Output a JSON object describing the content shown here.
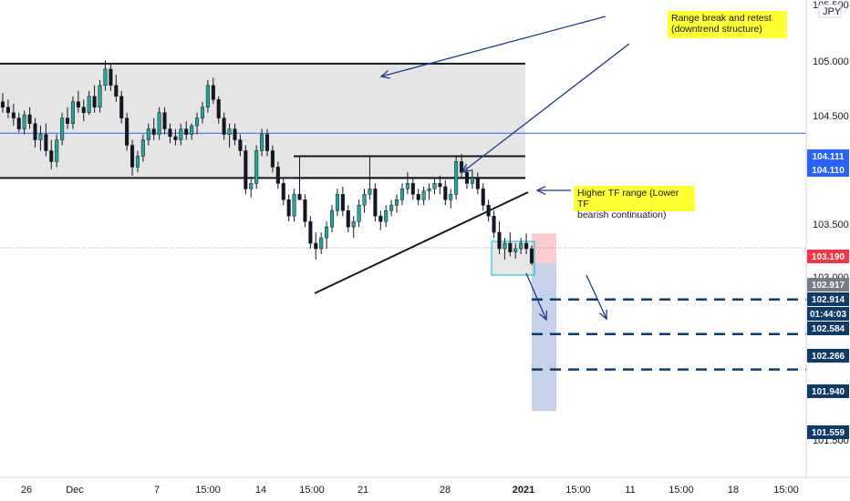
{
  "chart_data": {
    "type": "candlestick",
    "symbol_badge": "JPY",
    "y_axis": {
      "ticks": [
        "105.000",
        "104.500",
        "103.500",
        "103.000"
      ],
      "partial_ticks": [
        "105.500",
        "101.500"
      ],
      "range": [
        101.0,
        105.6
      ]
    },
    "x_axis": {
      "ticks": [
        "26",
        "Dec",
        "7",
        "15:00",
        "14",
        "15:00",
        "21",
        "28",
        "2021",
        "15:00",
        "11",
        "15:00",
        "18",
        "15:00"
      ]
    },
    "price_tags": [
      {
        "value": "104.111",
        "color": "#2962ff"
      },
      {
        "value": "104.110",
        "color": "#2962ff"
      },
      {
        "value": "103.190",
        "color": "#f23645"
      },
      {
        "value": "102.917",
        "color": "#787b86"
      },
      {
        "value": "102.914",
        "color": "#0c3a6b"
      },
      {
        "value": "01:44:03",
        "color": "#0c3a6b"
      },
      {
        "value": "102.584",
        "color": "#0c3a6b"
      },
      {
        "value": "102.266",
        "color": "#0c3a6b"
      },
      {
        "value": "101.940",
        "color": "#0c3a6b"
      },
      {
        "value": "101.559",
        "color": "#0c3a6b"
      }
    ],
    "horizontal_level": 104.111,
    "range_box": {
      "top": 104.75,
      "bottom": 103.7
    },
    "higher_tf_range": {
      "top": 103.9,
      "bottom": 103.7
    },
    "target_levels": [
      102.584,
      102.266,
      101.94
    ],
    "short_position": {
      "entry": 102.917,
      "stop": 103.19,
      "target": 101.559
    },
    "annotations": [
      "Range break and retest\n(downtrend structure)",
      "Higher TF range (Lower TF\nbearish continuation)"
    ],
    "colors": {
      "up": "#26a69a",
      "down": "#131722",
      "wick": "#131722",
      "level_line": "#2962ff",
      "target_line": "#0c3a6b"
    },
    "ohlc": [
      [
        104.4,
        104.48,
        104.3,
        104.35
      ],
      [
        104.35,
        104.42,
        104.25,
        104.3
      ],
      [
        104.3,
        104.38,
        104.18,
        104.25
      ],
      [
        104.25,
        104.3,
        104.12,
        104.15
      ],
      [
        104.15,
        104.32,
        104.1,
        104.28
      ],
      [
        104.28,
        104.35,
        104.15,
        104.2
      ],
      [
        104.2,
        104.25,
        103.98,
        104.05
      ],
      [
        104.05,
        104.18,
        103.95,
        104.1
      ],
      [
        104.1,
        104.2,
        103.9,
        103.95
      ],
      [
        103.95,
        104.05,
        103.78,
        103.85
      ],
      [
        103.85,
        104.1,
        103.8,
        104.05
      ],
      [
        104.05,
        104.3,
        104.0,
        104.25
      ],
      [
        104.25,
        104.35,
        104.15,
        104.2
      ],
      [
        104.2,
        104.45,
        104.15,
        104.4
      ],
      [
        104.4,
        104.5,
        104.3,
        104.35
      ],
      [
        104.35,
        104.42,
        104.22,
        104.3
      ],
      [
        104.3,
        104.5,
        104.28,
        104.45
      ],
      [
        104.45,
        104.55,
        104.3,
        104.35
      ],
      [
        104.35,
        104.6,
        104.3,
        104.55
      ],
      [
        104.55,
        104.78,
        104.5,
        104.7
      ],
      [
        104.7,
        104.75,
        104.5,
        104.55
      ],
      [
        104.55,
        104.65,
        104.4,
        104.45
      ],
      [
        104.45,
        104.5,
        104.2,
        104.25
      ],
      [
        104.25,
        104.3,
        103.95,
        104.0
      ],
      [
        104.0,
        104.05,
        103.72,
        103.8
      ],
      [
        103.8,
        103.95,
        103.75,
        103.9
      ],
      [
        103.9,
        104.1,
        103.85,
        104.05
      ],
      [
        104.05,
        104.2,
        104.0,
        104.15
      ],
      [
        104.15,
        104.25,
        104.05,
        104.1
      ],
      [
        104.1,
        104.35,
        104.05,
        104.3
      ],
      [
        104.3,
        104.35,
        104.1,
        104.15
      ],
      [
        104.15,
        104.2,
        104.02,
        104.08
      ],
      [
        104.08,
        104.15,
        104.0,
        104.05
      ],
      [
        104.05,
        104.2,
        104.0,
        104.15
      ],
      [
        104.15,
        104.22,
        104.05,
        104.1
      ],
      [
        104.1,
        104.2,
        104.05,
        104.18
      ],
      [
        104.18,
        104.3,
        104.1,
        104.25
      ],
      [
        104.25,
        104.4,
        104.2,
        104.35
      ],
      [
        104.35,
        104.6,
        104.3,
        104.55
      ],
      [
        104.55,
        104.62,
        104.38,
        104.42
      ],
      [
        104.42,
        104.45,
        104.2,
        104.25
      ],
      [
        104.25,
        104.3,
        104.05,
        104.1
      ],
      [
        104.1,
        104.2,
        103.98,
        104.15
      ],
      [
        104.15,
        104.2,
        104.0,
        104.05
      ],
      [
        104.05,
        104.1,
        103.9,
        103.95
      ],
      [
        103.95,
        104.0,
        103.55,
        103.6
      ],
      [
        103.6,
        103.7,
        103.52,
        103.65
      ],
      [
        103.65,
        104.0,
        103.6,
        103.95
      ],
      [
        103.95,
        104.15,
        103.9,
        104.1
      ],
      [
        104.1,
        104.15,
        103.9,
        103.95
      ],
      [
        103.95,
        104.0,
        103.75,
        103.8
      ],
      [
        103.8,
        103.85,
        103.6,
        103.65
      ],
      [
        103.65,
        103.7,
        103.45,
        103.5
      ],
      [
        103.5,
        103.55,
        103.3,
        103.35
      ],
      [
        103.35,
        103.6,
        103.3,
        103.55
      ],
      [
        103.55,
        103.9,
        103.5,
        103.5
      ],
      [
        103.5,
        103.55,
        103.25,
        103.3
      ],
      [
        103.3,
        103.35,
        103.05,
        103.1
      ],
      [
        103.1,
        103.2,
        102.95,
        103.05
      ],
      [
        103.05,
        103.2,
        103.0,
        103.15
      ],
      [
        103.15,
        103.3,
        103.05,
        103.25
      ],
      [
        103.25,
        103.45,
        103.2,
        103.4
      ],
      [
        103.4,
        103.6,
        103.35,
        103.55
      ],
      [
        103.55,
        103.62,
        103.35,
        103.4
      ],
      [
        103.4,
        103.45,
        103.2,
        103.25
      ],
      [
        103.25,
        103.35,
        103.15,
        103.3
      ],
      [
        103.3,
        103.5,
        103.25,
        103.45
      ],
      [
        103.45,
        103.6,
        103.38,
        103.55
      ],
      [
        103.55,
        103.9,
        103.5,
        103.6
      ],
      [
        103.6,
        103.65,
        103.3,
        103.35
      ],
      [
        103.35,
        103.4,
        103.22,
        103.3
      ],
      [
        103.3,
        103.45,
        103.25,
        103.4
      ],
      [
        103.4,
        103.5,
        103.35,
        103.45
      ],
      [
        103.45,
        103.55,
        103.38,
        103.5
      ],
      [
        103.5,
        103.65,
        103.45,
        103.6
      ],
      [
        103.6,
        103.75,
        103.55,
        103.65
      ],
      [
        103.65,
        103.7,
        103.5,
        103.55
      ],
      [
        103.55,
        103.6,
        103.45,
        103.5
      ],
      [
        103.5,
        103.62,
        103.45,
        103.58
      ],
      [
        103.58,
        103.65,
        103.5,
        103.6
      ],
      [
        103.6,
        103.7,
        103.55,
        103.65
      ],
      [
        103.65,
        103.72,
        103.55,
        103.62
      ],
      [
        103.62,
        103.68,
        103.45,
        103.5
      ],
      [
        103.5,
        103.6,
        103.42,
        103.55
      ],
      [
        103.55,
        103.9,
        103.5,
        103.85
      ],
      [
        103.85,
        103.92,
        103.7,
        103.75
      ],
      [
        103.75,
        103.8,
        103.6,
        103.65
      ],
      [
        103.65,
        103.78,
        103.6,
        103.7
      ],
      [
        103.7,
        103.75,
        103.55,
        103.6
      ],
      [
        103.6,
        103.65,
        103.4,
        103.45
      ],
      [
        103.45,
        103.5,
        103.3,
        103.35
      ],
      [
        103.35,
        103.4,
        103.15,
        103.2
      ],
      [
        103.2,
        103.3,
        103.0,
        103.05
      ],
      [
        103.05,
        103.15,
        102.95,
        103.1
      ],
      [
        103.1,
        103.2,
        102.98,
        103.02
      ],
      [
        103.02,
        103.1,
        102.96,
        103.05
      ],
      [
        103.05,
        103.15,
        103.0,
        103.1
      ],
      [
        103.1,
        103.19,
        103.0,
        103.05
      ],
      [
        103.05,
        103.08,
        102.9,
        102.917
      ]
    ]
  }
}
